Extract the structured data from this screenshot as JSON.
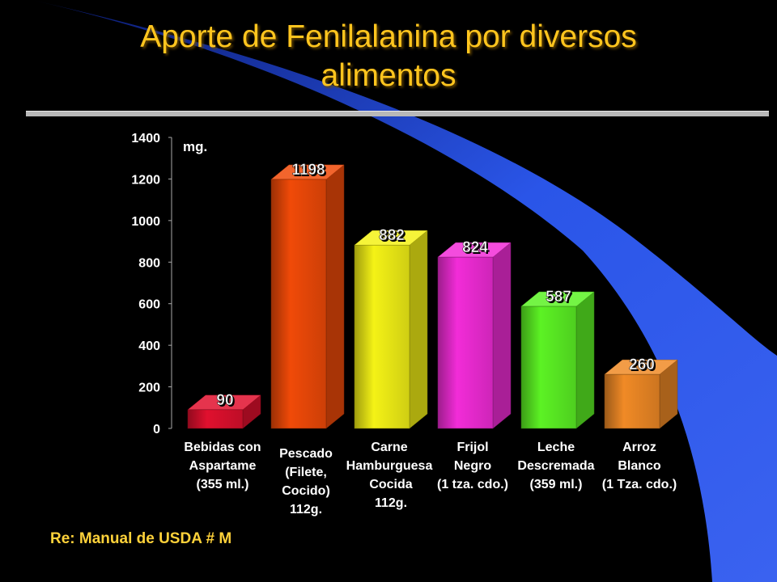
{
  "slide": {
    "title_line1": "Aporte de Fenilalanina por diversos",
    "title_line2": "alimentos",
    "source_note": "Re: Manual de USDA # M"
  },
  "chart_data": {
    "type": "bar",
    "unit_label": "mg.",
    "ylim": [
      0,
      1400
    ],
    "yticks": [
      0,
      200,
      400,
      600,
      800,
      1000,
      1200,
      1400
    ],
    "grid": false,
    "categories": [
      [
        "Bebidas con",
        "Aspartame",
        "(355 ml.)"
      ],
      [
        "Pescado",
        "(Filete,",
        "Cocido)",
        "112g."
      ],
      [
        "Carne",
        "Hamburguesa",
        "Cocida",
        "112g."
      ],
      [
        "Frijol",
        "Negro",
        "(1 tza. cdo.)"
      ],
      [
        "Leche",
        "Descremada",
        "(359 ml.)"
      ],
      [
        "Arroz",
        "Blanco",
        "(1 Tza. cdo.)"
      ]
    ],
    "values": [
      90,
      1198,
      882,
      824,
      587,
      260
    ],
    "data_labels": [
      "90",
      "1198",
      "882",
      "824",
      "587",
      "260"
    ],
    "bar_colors": [
      "#E0102E",
      "#F04A08",
      "#F4F216",
      "#F22CD8",
      "#5CF224",
      "#F08A26"
    ]
  }
}
